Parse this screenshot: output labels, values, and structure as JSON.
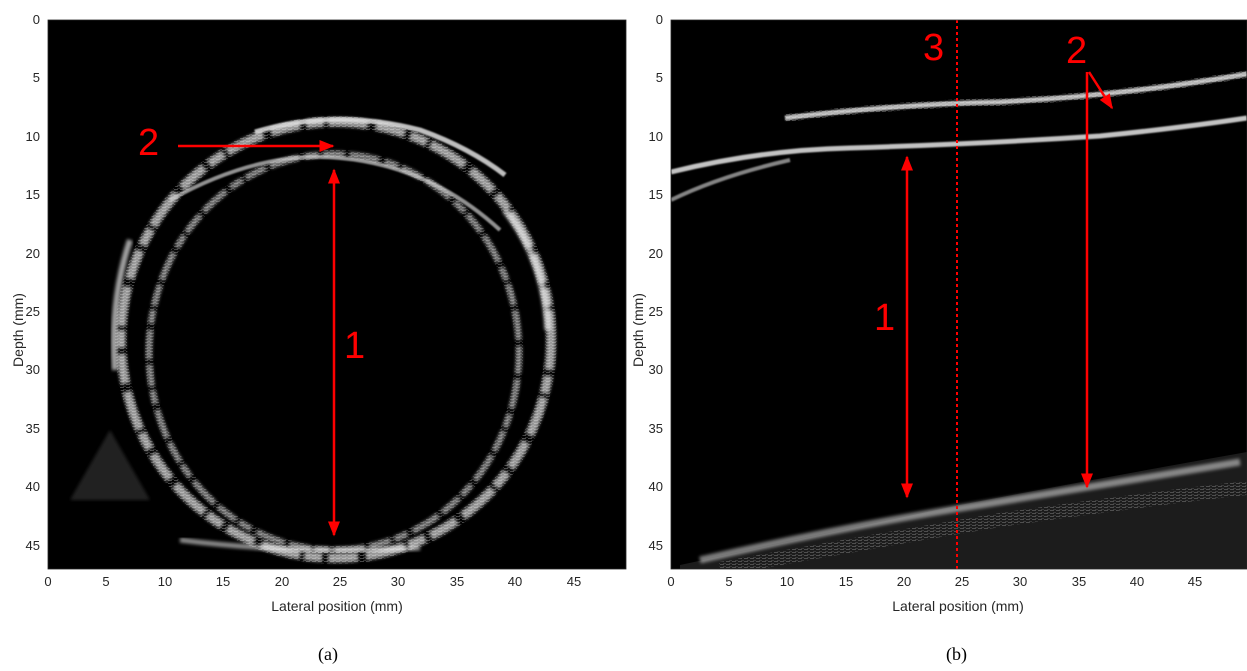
{
  "panels": [
    {
      "id": "a",
      "caption": "(a)",
      "xlabel": "Lateral position (mm)",
      "ylabel": "Depth (mm)",
      "xticks": [
        "0",
        "5",
        "10",
        "15",
        "20",
        "25",
        "30",
        "35",
        "40",
        "45"
      ],
      "yticks": [
        "0",
        "5",
        "10",
        "15",
        "20",
        "25",
        "30",
        "35",
        "40",
        "45"
      ],
      "xlim": [
        0,
        49.5
      ],
      "ylim": [
        0,
        47
      ],
      "annotations": [
        "1",
        "2"
      ]
    },
    {
      "id": "b",
      "caption": "(b)",
      "xlabel": "Lateral position (mm)",
      "ylabel": "Depth (mm)",
      "xticks": [
        "0",
        "5",
        "10",
        "15",
        "20",
        "25",
        "30",
        "35",
        "40",
        "45"
      ],
      "yticks": [
        "0",
        "5",
        "10",
        "15",
        "20",
        "25",
        "30",
        "35",
        "40",
        "45"
      ],
      "xlim": [
        0,
        49.5
      ],
      "ylim": [
        0,
        47
      ],
      "annotations": [
        "1",
        "2",
        "3"
      ]
    }
  ],
  "colors": {
    "annotation": "#ff0000",
    "image_background": "#000000",
    "echo": "#e6e6e6"
  }
}
